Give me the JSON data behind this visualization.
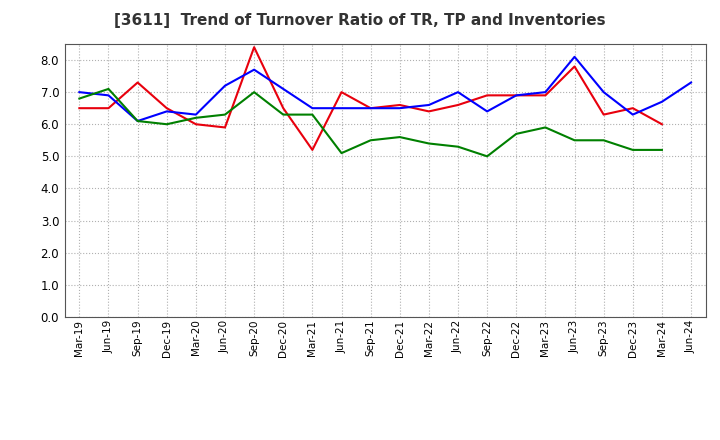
{
  "title": "[3611]  Trend of Turnover Ratio of TR, TP and Inventories",
  "labels": [
    "Mar-19",
    "Jun-19",
    "Sep-19",
    "Dec-19",
    "Mar-20",
    "Jun-20",
    "Sep-20",
    "Dec-20",
    "Mar-21",
    "Jun-21",
    "Sep-21",
    "Dec-21",
    "Mar-22",
    "Jun-22",
    "Sep-22",
    "Dec-22",
    "Mar-23",
    "Jun-23",
    "Sep-23",
    "Dec-23",
    "Mar-24",
    "Jun-24"
  ],
  "trade_receivables": [
    6.5,
    6.5,
    7.3,
    6.5,
    6.0,
    5.9,
    8.4,
    6.5,
    5.2,
    7.0,
    6.5,
    6.6,
    6.4,
    6.6,
    6.9,
    6.9,
    6.9,
    7.8,
    6.3,
    6.5,
    6.0,
    null
  ],
  "trade_payables": [
    7.0,
    6.9,
    6.1,
    6.4,
    6.3,
    7.2,
    7.7,
    7.1,
    6.5,
    6.5,
    6.5,
    6.5,
    6.6,
    7.0,
    6.4,
    6.9,
    7.0,
    8.1,
    7.0,
    6.3,
    6.7,
    7.3
  ],
  "inventories": [
    6.8,
    7.1,
    6.1,
    6.0,
    6.2,
    6.3,
    7.0,
    6.3,
    6.3,
    5.1,
    5.5,
    5.6,
    5.4,
    5.3,
    5.0,
    5.7,
    5.9,
    5.5,
    5.5,
    5.2,
    5.2,
    null
  ],
  "tr_color": "#e8000d",
  "tp_color": "#0000ff",
  "inv_color": "#008000",
  "ylim": [
    0.0,
    8.5
  ],
  "yticks": [
    0.0,
    1.0,
    2.0,
    3.0,
    4.0,
    5.0,
    6.0,
    7.0,
    8.0
  ],
  "background_color": "#ffffff",
  "plot_bg_color": "#ffffff",
  "grid_color": "#b0b0b0",
  "linewidth": 1.5
}
